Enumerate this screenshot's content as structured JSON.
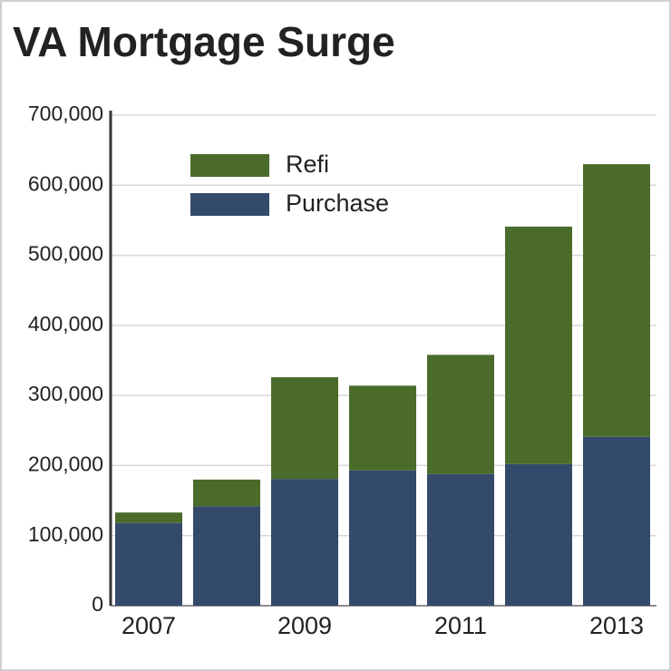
{
  "chart_data": {
    "type": "stacked-bar",
    "title": "VA Mortgage Surge",
    "categories": [
      "2007",
      null,
      "2009",
      null,
      "2011",
      null,
      "2013"
    ],
    "series": [
      {
        "name": "Refi",
        "color": "#4b6b2b",
        "values": [
          15000,
          38000,
          145000,
          121000,
          170000,
          339000,
          389000
        ]
      },
      {
        "name": "Purchase",
        "color": "#344a6b",
        "values": [
          118000,
          142000,
          181000,
          193000,
          188000,
          202000,
          241000
        ]
      }
    ],
    "ylim": [
      0,
      700000
    ],
    "yticks": [
      0,
      {
        "value": 100000,
        "label": "100,000"
      },
      {
        "value": 200000,
        "label": "200,000"
      },
      {
        "value": 300000,
        "label": "300,000"
      },
      {
        "value": 400000,
        "label": "400,000"
      },
      {
        "value": 500000,
        "label": "500,000"
      },
      {
        "value": 600000,
        "label": "600,000"
      },
      {
        "value": 700000,
        "label": "700,000"
      }
    ],
    "grid": true
  }
}
